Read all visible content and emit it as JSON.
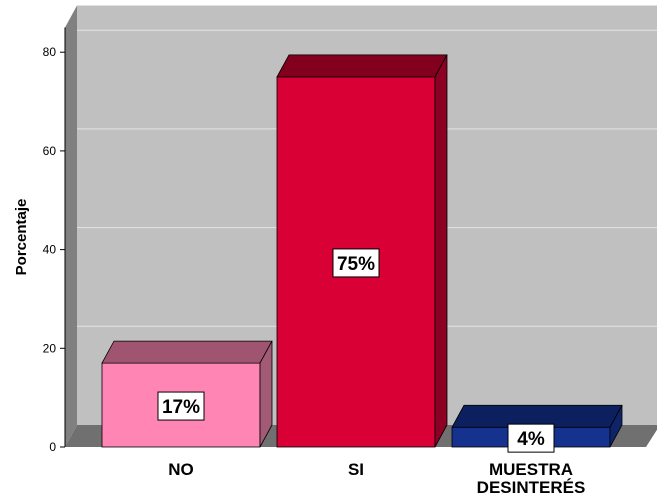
{
  "chart_data": {
    "type": "bar",
    "categories": [
      "NO",
      "SI",
      "MUESTRA\nDESINTERÉS"
    ],
    "values": [
      17,
      75,
      4
    ],
    "data_labels": [
      "17%",
      "75%",
      "4%"
    ],
    "ylabel": "Porcentaje",
    "xlabel": "",
    "ylim": [
      0,
      85
    ],
    "yticks": [
      0,
      20,
      40,
      60,
      80
    ],
    "grid": true,
    "legend": "none",
    "style": "3d",
    "colors": {
      "plot_back": "#c0c0c0",
      "floor": "#707070",
      "wall_side": "#808080",
      "grid": "#e4e4e4",
      "bars": [
        {
          "front": "#ff85b4",
          "top": "#9f5570",
          "side": "#a25a75"
        },
        {
          "front": "#d90035",
          "top": "#82001e",
          "side": "#8c0024"
        },
        {
          "front": "#16328f",
          "top": "#0c1f5e",
          "side": "#0f2468"
        }
      ]
    }
  }
}
